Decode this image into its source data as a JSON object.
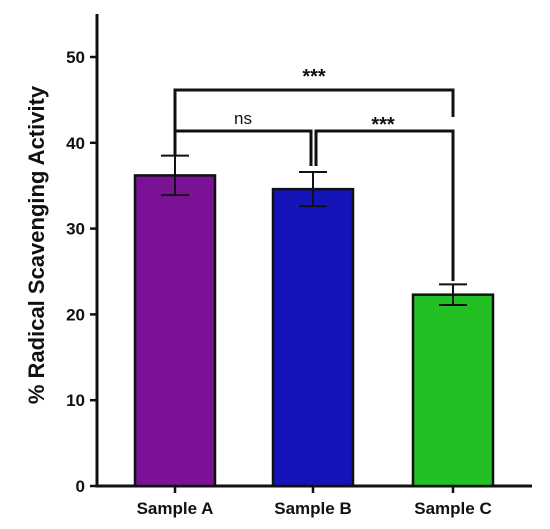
{
  "chart_data": {
    "type": "bar",
    "title": "",
    "xlabel": "",
    "ylabel": "% Radical Scavenging Activity",
    "ylim": [
      0,
      55
    ],
    "yticks": [
      0,
      10,
      20,
      30,
      40,
      50
    ],
    "grid": false,
    "categories": [
      "Sample A",
      "Sample B",
      "Sample C"
    ],
    "values": [
      36.2,
      34.6,
      22.3
    ],
    "errors": [
      2.3,
      2.0,
      1.2
    ],
    "colors": [
      "#7B1296",
      "#1414B8",
      "#22C022"
    ],
    "significance": [
      {
        "from": "Sample A",
        "to": "Sample B",
        "label": "ns"
      },
      {
        "from": "Sample B",
        "to": "Sample C",
        "label": "***"
      },
      {
        "from": "Sample A",
        "to": "Sample C",
        "label": "***"
      }
    ]
  }
}
